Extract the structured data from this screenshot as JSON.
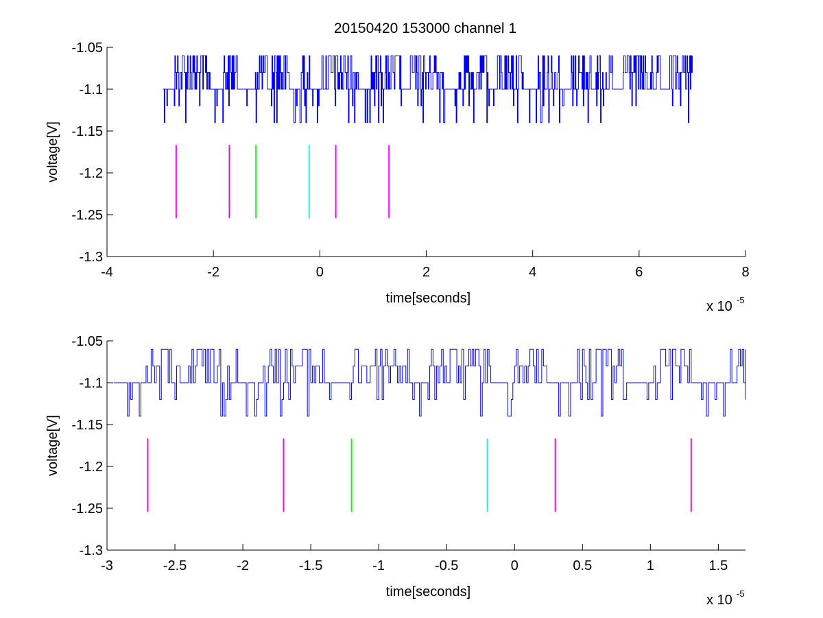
{
  "title": "20150420 153000 channel 1",
  "colors": {
    "trace": "#0000ff",
    "marker_magenta": "#ff00ff",
    "marker_green": "#00ff00",
    "marker_cyan": "#00ffff",
    "axes": "#000000",
    "background": "#ffffff"
  },
  "chart_data": [
    {
      "type": "line",
      "title": "20150420 153000 channel 1",
      "xlabel": "time[seconds]",
      "ylabel": "voltage[V]",
      "x_exponent_label": "x 10",
      "x_exponent_power": "-5",
      "xlim": [
        -4,
        8
      ],
      "ylim": [
        -1.3,
        -1.05
      ],
      "x_ticks": [
        -4,
        -2,
        0,
        2,
        4,
        6,
        8
      ],
      "x_tick_labels": [
        "-4",
        "-2",
        "0",
        "2",
        "4",
        "6",
        "8"
      ],
      "y_ticks": [
        -1.3,
        -1.25,
        -1.2,
        -1.15,
        -1.1,
        -1.05
      ],
      "y_tick_labels": [
        "-1.3",
        "-1.25",
        "-1.2",
        "-1.15",
        "-1.1",
        "-1.05"
      ],
      "grid": false,
      "trace": {
        "x_range": [
          -2.95,
          7.0
        ],
        "levels": [
          -1.14,
          -1.12,
          -1.1,
          -1.08,
          -1.06
        ],
        "baseline": -1.1,
        "dense_flicker": true
      },
      "markers": [
        {
          "x": -2.7,
          "y": [
            -1.2542,
            -1.1666
          ],
          "color": "magenta"
        },
        {
          "x": -1.7,
          "y": [
            -1.2542,
            -1.1666
          ],
          "color": "magenta"
        },
        {
          "x": -1.2,
          "y": [
            -1.2542,
            -1.1666
          ],
          "color": "green"
        },
        {
          "x": -0.2,
          "y": [
            -1.2542,
            -1.1666
          ],
          "color": "cyan"
        },
        {
          "x": 0.3,
          "y": [
            -1.2542,
            -1.1666
          ],
          "color": "magenta"
        },
        {
          "x": 1.3,
          "y": [
            -1.2542,
            -1.1666
          ],
          "color": "magenta"
        }
      ]
    },
    {
      "type": "line",
      "title": "",
      "xlabel": "time[seconds]",
      "ylabel": "voltage[V]",
      "x_exponent_label": "x 10",
      "x_exponent_power": "-5",
      "xlim": [
        -3.0,
        1.7
      ],
      "ylim": [
        -1.3,
        -1.05
      ],
      "x_ticks": [
        -3,
        -2.5,
        -2,
        -1.5,
        -1,
        -0.5,
        0,
        0.5,
        1,
        1.5
      ],
      "x_tick_labels": [
        "-3",
        "-2.5",
        "-2",
        "-1.5",
        "-1",
        "-0.5",
        "0",
        "0.5",
        "1",
        "1.5"
      ],
      "y_ticks": [
        -1.3,
        -1.25,
        -1.2,
        -1.15,
        -1.1,
        -1.05
      ],
      "y_tick_labels": [
        "-1.3",
        "-1.25",
        "-1.2",
        "-1.15",
        "-1.1",
        "-1.05"
      ],
      "grid": false,
      "trace": {
        "x_range": [
          -2.95,
          1.7
        ],
        "levels": [
          -1.14,
          -1.12,
          -1.1,
          -1.08,
          -1.06
        ],
        "baseline": -1.1,
        "dense_flicker": false
      },
      "markers": [
        {
          "x": -2.7,
          "y": [
            -1.2542,
            -1.1666
          ],
          "color": "magenta"
        },
        {
          "x": -1.7,
          "y": [
            -1.2542,
            -1.1666
          ],
          "color": "magenta"
        },
        {
          "x": -1.2,
          "y": [
            -1.2542,
            -1.1666
          ],
          "color": "green"
        },
        {
          "x": -0.2,
          "y": [
            -1.2542,
            -1.1666
          ],
          "color": "cyan"
        },
        {
          "x": 0.3,
          "y": [
            -1.2542,
            -1.1666
          ],
          "color": "magenta"
        },
        {
          "x": 1.3,
          "y": [
            -1.2542,
            -1.1666
          ],
          "color": "magenta"
        }
      ]
    }
  ]
}
